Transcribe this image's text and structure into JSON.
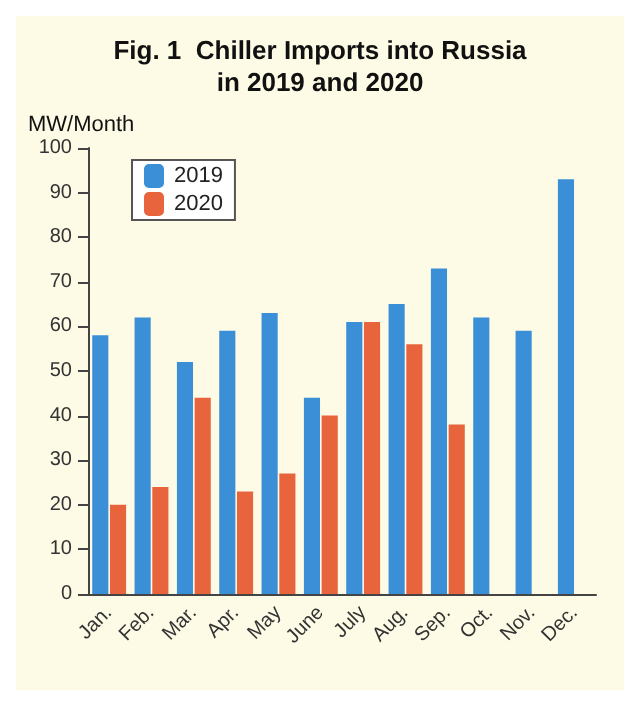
{
  "chart_data": {
    "type": "bar",
    "title": "Fig. 1  Chiller Imports into Russia\nin 2019 and 2020",
    "ylabel": "MW/Month",
    "categories": [
      "Jan.",
      "Feb.",
      "Mar.",
      "Apr.",
      "May",
      "June",
      "July",
      "Aug.",
      "Sep.",
      "Oct.",
      "Nov.",
      "Dec."
    ],
    "series": [
      {
        "name": "2019",
        "color": "#3a8fd6",
        "values": [
          58,
          62,
          52,
          59,
          63,
          44,
          61,
          65,
          73,
          62,
          59,
          93
        ]
      },
      {
        "name": "2020",
        "color": "#e8643c",
        "values": [
          20,
          24,
          44,
          23,
          27,
          40,
          61,
          56,
          38,
          null,
          null,
          null
        ]
      }
    ],
    "ylim": [
      0,
      100
    ],
    "yticks": [
      0,
      10,
      20,
      30,
      40,
      50,
      60,
      70,
      80,
      90,
      100
    ],
    "grid": false,
    "legend": "top left"
  }
}
